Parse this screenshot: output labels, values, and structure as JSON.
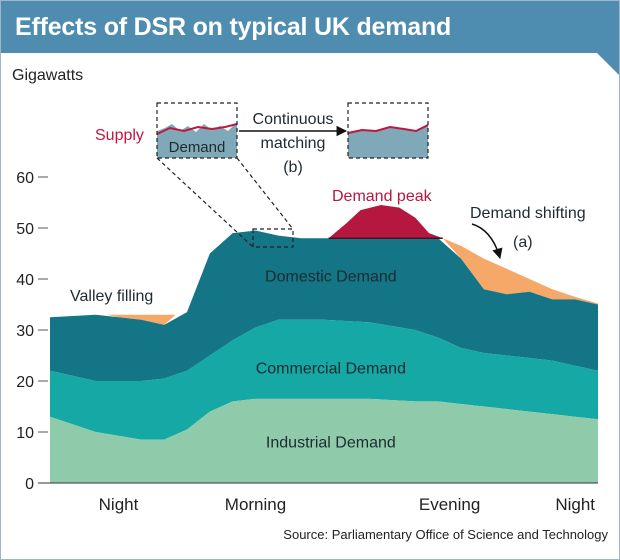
{
  "header": {
    "title": "Effects of DSR on typical UK demand"
  },
  "chart_data": {
    "type": "area",
    "stacked": true,
    "title": "Effects of DSR on typical UK demand",
    "ylabel": "Gigawatts",
    "ylim": [
      0,
      60
    ],
    "yticks": [
      0,
      10,
      20,
      30,
      40,
      50,
      60
    ],
    "time_labels": [
      "Night",
      "Morning",
      "Evening",
      "Night"
    ],
    "time_label_hours": [
      3,
      9,
      17.5,
      23
    ],
    "xlim": [
      0,
      24
    ],
    "x": [
      0,
      2,
      4,
      5,
      6,
      7,
      8,
      9,
      10,
      11,
      12,
      14,
      16,
      17,
      18,
      19,
      20,
      21,
      22,
      23,
      24
    ],
    "series": [
      {
        "name": "Industrial Demand",
        "color": "#8fcbab",
        "values": [
          13,
          10,
          8.5,
          8.5,
          10.5,
          14,
          16,
          16.5,
          16.5,
          16.5,
          16.5,
          16.5,
          16,
          16,
          15.5,
          15,
          14.5,
          14,
          13.5,
          13,
          12.5
        ]
      },
      {
        "name": "Commercial Demand",
        "color": "#15a8a4",
        "values": [
          22,
          20,
          20,
          20.5,
          22,
          25,
          28,
          30.5,
          32,
          32,
          32,
          31.5,
          30,
          28.5,
          26.5,
          25.5,
          25,
          24.5,
          24,
          23,
          22
        ]
      },
      {
        "name": "Domestic Demand",
        "color": "#137585",
        "values": [
          32.5,
          33,
          32,
          31,
          33.5,
          45,
          49,
          49.5,
          48.5,
          48,
          48,
          48,
          48,
          48,
          44,
          38,
          37,
          37.5,
          36,
          36,
          35
        ]
      }
    ],
    "annotations": {
      "valley_filling": {
        "label": "Valley filling",
        "color": "#f5a868"
      },
      "demand_peak": {
        "label": "Demand peak",
        "color": "#b5173f"
      },
      "demand_shifting": {
        "label": "Demand shifting",
        "marker": "(a)",
        "color": "#f5a868"
      },
      "continuous_matching": {
        "label_line1": "Continuous",
        "label_line2": "matching",
        "marker": "(b)"
      },
      "inset_supply_label": "Supply",
      "inset_demand_label": "Demand"
    },
    "source": "Source: Parliamentary Office of Science and Technology"
  }
}
